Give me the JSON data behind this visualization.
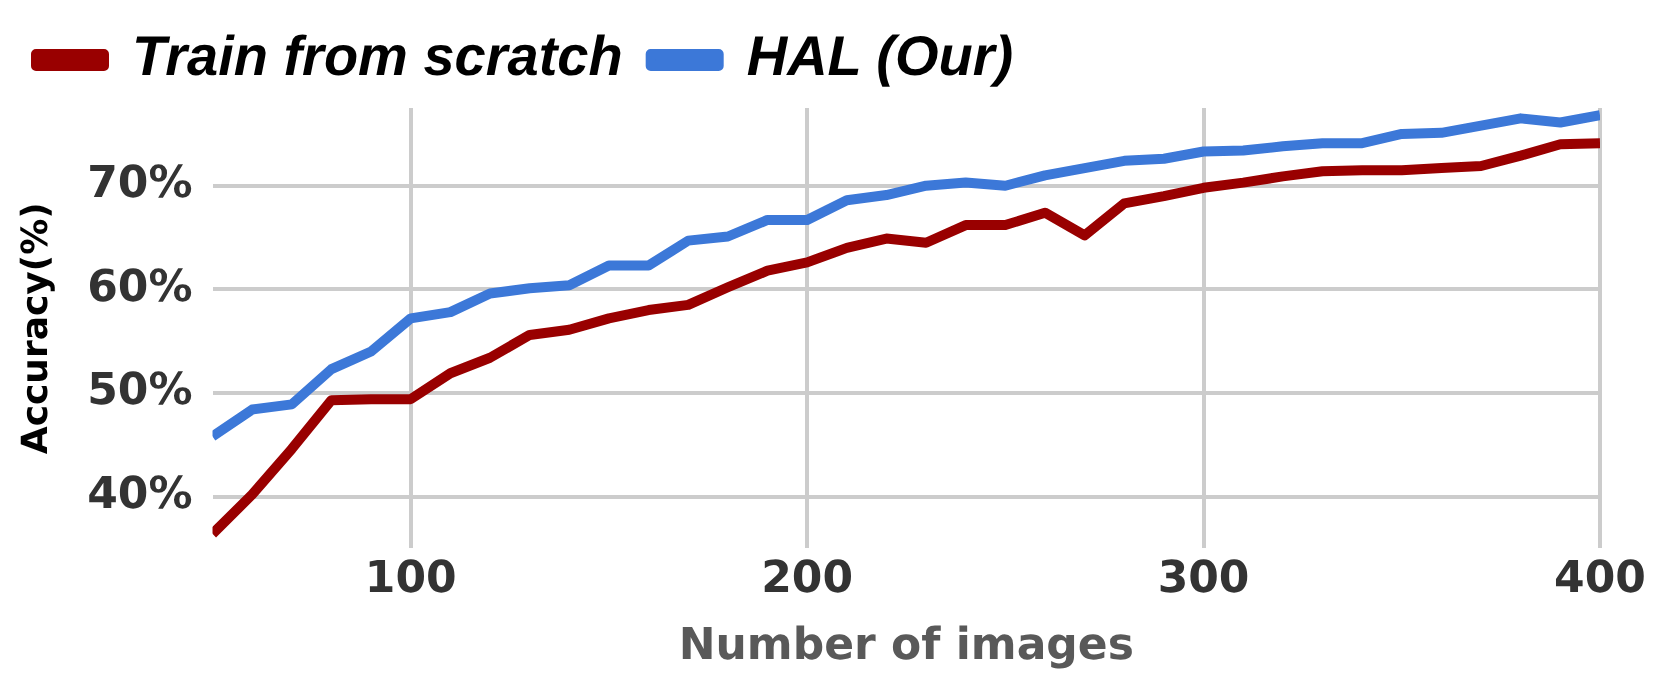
{
  "chart_data": {
    "type": "line",
    "xlabel": "Number of images",
    "ylabel": "Accuracy(%)",
    "x": [
      50,
      60,
      70,
      80,
      90,
      100,
      110,
      120,
      130,
      140,
      150,
      160,
      170,
      180,
      190,
      200,
      210,
      220,
      230,
      240,
      250,
      260,
      270,
      280,
      290,
      300,
      310,
      320,
      330,
      340,
      350,
      360,
      370,
      380,
      390,
      400
    ],
    "series": [
      {
        "name": "Train from scratch",
        "color": "#990000",
        "values": [
          36.4,
          40.2,
          44.6,
          49.3,
          49.4,
          49.4,
          51.9,
          53.4,
          55.6,
          56.1,
          57.2,
          58.0,
          58.5,
          60.2,
          61.8,
          62.6,
          64.0,
          64.9,
          64.5,
          66.2,
          66.2,
          67.4,
          65.2,
          68.3,
          69.0,
          69.8,
          70.3,
          70.9,
          71.4,
          71.5,
          71.5,
          71.7,
          71.9,
          72.9,
          74.0,
          74.1
        ]
      },
      {
        "name": "HAL (Our)",
        "color": "#3c78d8",
        "values": [
          45.8,
          48.4,
          48.9,
          52.3,
          54.0,
          57.2,
          57.8,
          59.6,
          60.1,
          60.4,
          62.3,
          62.3,
          64.7,
          65.1,
          66.7,
          66.7,
          68.6,
          69.1,
          70.0,
          70.3,
          70.0,
          71.0,
          71.7,
          72.4,
          72.6,
          73.3,
          73.4,
          73.8,
          74.1,
          74.1,
          75.0,
          75.1,
          75.8,
          76.5,
          76.1,
          76.8
        ]
      }
    ],
    "xlim": [
      50,
      400
    ],
    "xticks": [
      100,
      200,
      300,
      400
    ],
    "ylim": [
      35,
      77.5
    ],
    "yticks": [
      {
        "value": 40,
        "label": "40%"
      },
      {
        "value": 50,
        "label": "50%"
      },
      {
        "value": 60,
        "label": "60%"
      },
      {
        "value": 70,
        "label": "70%"
      }
    ],
    "grid": true,
    "legend": "top left",
    "marker": "none",
    "line_style": "solid"
  }
}
